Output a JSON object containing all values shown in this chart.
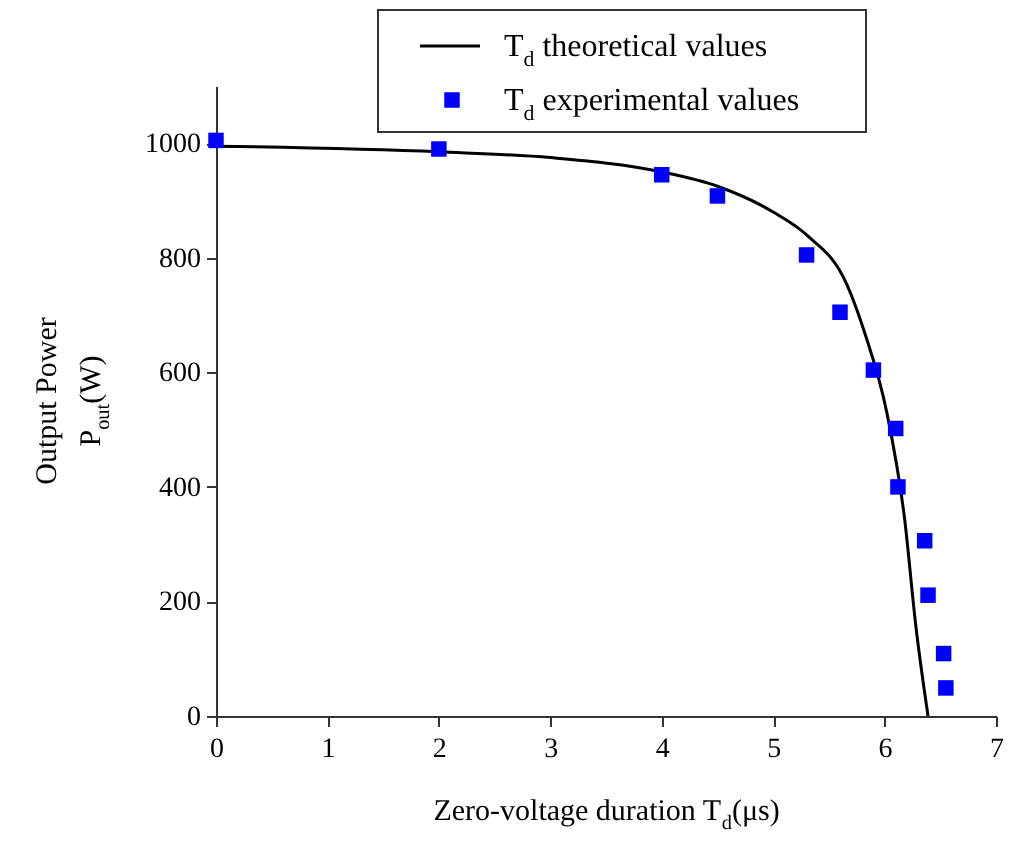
{
  "chart_data": {
    "type": "scatter",
    "xlabel": "Zero-voltage duration T$_{d}$(μs)",
    "ylabel": "Output Power P$_{out}$(W)",
    "xlim": [
      0,
      7
    ],
    "xticks": [
      0,
      1,
      2,
      3,
      4,
      5,
      6,
      7
    ],
    "ylim": [
      0,
      1100
    ],
    "yticks": [
      0,
      200,
      400,
      600,
      800,
      1000
    ],
    "grid": false,
    "legend": "top right",
    "series": [
      {
        "name": "T$_{d}$ theoretical values",
        "type": "line",
        "color": "#000000",
        "marker": "none",
        "line_style": "solid",
        "x": [
          0,
          2,
          3,
          4,
          4.5,
          5,
          5.3,
          5.66,
          5.82,
          6.02,
          6.18,
          6.28,
          6.39
        ],
        "values": [
          995,
          985,
          975,
          950,
          925,
          880,
          840,
          754,
          670,
          530,
          344,
          158,
          0
        ]
      },
      {
        "name": "T$_{d}$ experimental values",
        "color": "#0000ff",
        "marker": "square",
        "x": [
          0,
          2,
          4,
          4.5,
          5.3,
          5.6,
          5.9,
          6.1,
          6.12,
          6.36,
          6.39,
          6.53,
          6.55
        ],
        "values": [
          1005,
          990,
          945,
          908,
          805,
          705,
          604,
          502,
          400,
          306,
          211,
          109,
          49
        ]
      }
    ]
  }
}
